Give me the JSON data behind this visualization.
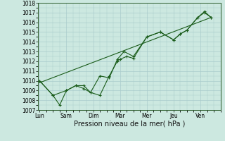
{
  "title": "",
  "xlabel": "Pression niveau de la mer( hPa )",
  "background_color": "#cce8e0",
  "grid_color": "#aacccc",
  "line_color": "#1a5c1a",
  "ylim": [
    1007,
    1018
  ],
  "yticks": [
    1007,
    1008,
    1009,
    1010,
    1011,
    1012,
    1013,
    1014,
    1015,
    1016,
    1017,
    1018
  ],
  "day_labels": [
    "Lun",
    "Sam",
    "Dim",
    "Mar",
    "Mer",
    "Jeu",
    "Ven"
  ],
  "day_positions": [
    0,
    2,
    4,
    6,
    8,
    10,
    12
  ],
  "xlim": [
    -0.1,
    13.5
  ],
  "series1_x": [
    0,
    1,
    2,
    2.7,
    3.3,
    3.8,
    4.5,
    5.2,
    5.8,
    6.3,
    7.0,
    8.0,
    9.0,
    10.0,
    10.5,
    11.0,
    11.8,
    12.3,
    12.8
  ],
  "series1_y": [
    1010.0,
    1008.5,
    1009.0,
    1009.5,
    1009.5,
    1008.8,
    1010.5,
    1010.3,
    1012.2,
    1013.0,
    1012.5,
    1014.5,
    1015.0,
    1014.2,
    1014.8,
    1015.2,
    1016.5,
    1017.1,
    1016.5
  ],
  "series2_x": [
    0,
    1,
    1.5,
    2,
    2.7,
    3.3,
    3.8,
    4.5,
    5.2,
    5.8,
    6.0,
    6.5,
    7.0,
    8.0,
    9.0,
    10.0,
    10.5,
    11.0,
    11.8,
    12.3,
    12.8
  ],
  "series2_y": [
    1010.0,
    1008.5,
    1007.5,
    1009.0,
    1009.5,
    1009.2,
    1008.8,
    1008.5,
    1010.5,
    1012.0,
    1012.2,
    1012.5,
    1012.3,
    1014.5,
    1015.0,
    1014.2,
    1014.8,
    1015.2,
    1016.5,
    1017.0,
    1016.5
  ],
  "trend_x": [
    0,
    12.8
  ],
  "trend_y": [
    1009.8,
    1016.5
  ]
}
